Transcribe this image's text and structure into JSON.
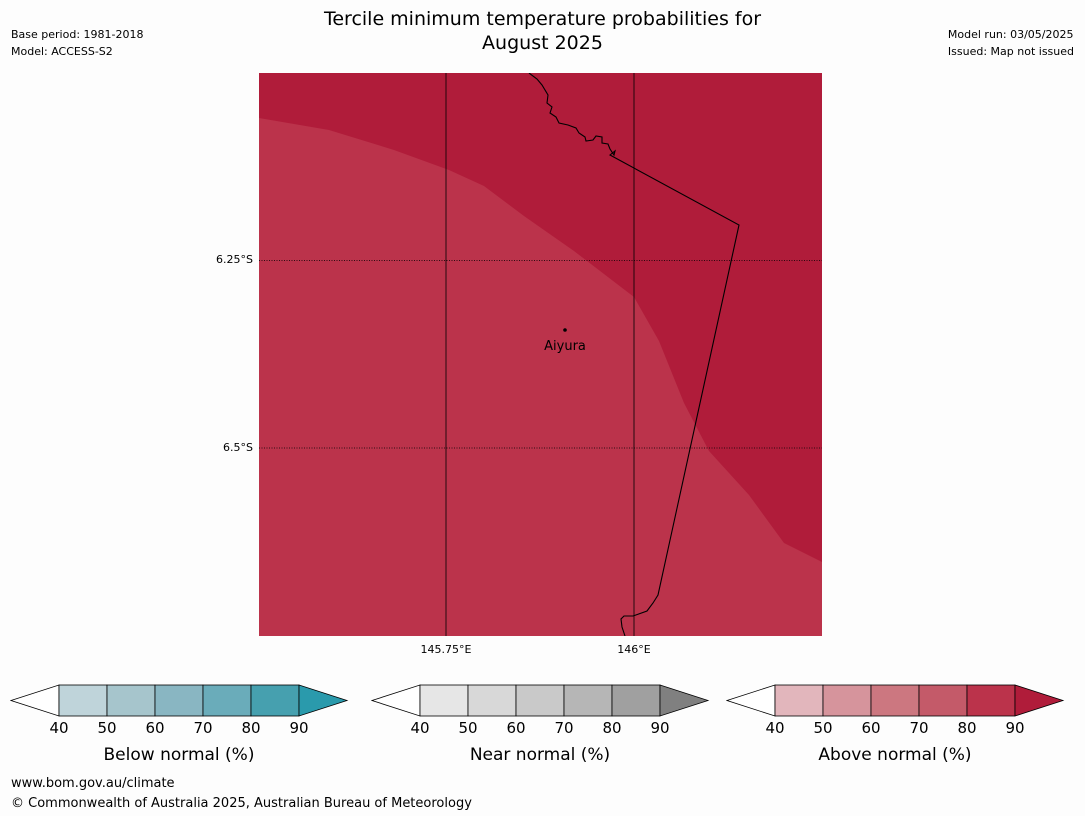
{
  "header": {
    "base_period": "Base period: 1981-2018",
    "model": "Model: ACCESS-S2",
    "title_line1": "Tercile minimum temperature probabilities for",
    "title_line2": "August 2025",
    "model_run": "Model run: 03/05/2025",
    "issued": "Issued: Map not issued"
  },
  "map": {
    "lat_labels": [
      "6.25°S",
      "6.5°S"
    ],
    "lon_labels": [
      "145.75°E",
      "146°E"
    ],
    "place_name": "Aiyura",
    "colors": {
      "region_80_90": "#b01c3a",
      "region_70_80": "#bb334b"
    }
  },
  "legend": {
    "below": {
      "label": "Below normal (%)",
      "ticks": [
        "40",
        "50",
        "60",
        "70",
        "80",
        "90"
      ],
      "colors": [
        "#ffffff",
        "#bfd4da",
        "#a6c5cc",
        "#89b6c2",
        "#6aacba",
        "#46a0af",
        "#2a9aac"
      ]
    },
    "near": {
      "label": "Near normal (%)",
      "ticks": [
        "40",
        "50",
        "60",
        "70",
        "80",
        "90"
      ],
      "colors": [
        "#ffffff",
        "#e6e6e6",
        "#d8d8d8",
        "#c9c9c9",
        "#b6b6b6",
        "#a0a0a0",
        "#808080"
      ]
    },
    "above": {
      "label": "Above normal (%)",
      "ticks": [
        "40",
        "50",
        "60",
        "70",
        "80",
        "90"
      ],
      "colors": [
        "#ffffff",
        "#e2b6bc",
        "#d6949c",
        "#cc7780",
        "#c45a69",
        "#bb334b",
        "#b01c3a"
      ]
    }
  },
  "footer": {
    "url": "www.bom.gov.au/climate",
    "copyright": "© Commonwealth of Australia 2025, Australian Bureau of Meteorology"
  }
}
